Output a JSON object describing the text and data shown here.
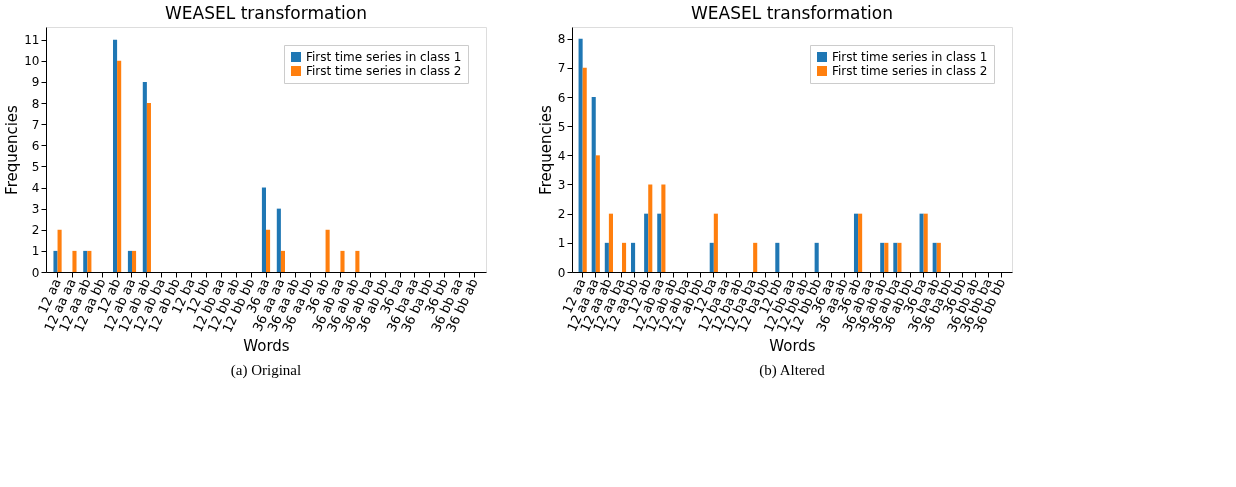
{
  "chart_data": [
    {
      "type": "bar",
      "title": "WEASEL transformation",
      "xlabel": "Words",
      "ylabel": "Frequencies",
      "legend": "top right",
      "grid": false,
      "categories": [
        "12 aa",
        "12 aa aa",
        "12 aa ab",
        "12 aa bb",
        "12 ab",
        "12 ab aa",
        "12 ab ab",
        "12 ab ba",
        "12 ab bb",
        "12 ba",
        "12 bb",
        "12 bb aa",
        "12 bb ab",
        "12 bb bb",
        "36 aa",
        "36 aa aa",
        "36 aa ab",
        "36 aa bb",
        "36 ab",
        "36 ab aa",
        "36 ab ab",
        "36 ab ba",
        "36 ab bb",
        "36 ba",
        "36 ba aa",
        "36 ba bb",
        "36 bb",
        "36 bb aa",
        "36 bb ab"
      ],
      "series": [
        {
          "name": "First time series in class 1",
          "color": "#1f77b4",
          "values": [
            1,
            0,
            1,
            0,
            11,
            1,
            9,
            0,
            0,
            0,
            0,
            0,
            0,
            0,
            4,
            3,
            0,
            0,
            0,
            0,
            0,
            0,
            0,
            0,
            0,
            0,
            0,
            0,
            0
          ]
        },
        {
          "name": "First time series in class 2",
          "color": "#ff7f0e",
          "values": [
            2,
            1,
            1,
            0,
            10,
            1,
            8,
            0,
            0,
            0,
            0,
            0,
            0,
            0,
            2,
            1,
            0,
            0,
            2,
            1,
            1,
            0,
            0,
            0,
            0,
            0,
            0,
            0,
            0
          ]
        }
      ],
      "ylim": [
        0,
        11.6
      ],
      "yticks": [
        0,
        1,
        2,
        3,
        4,
        5,
        6,
        7,
        8,
        9,
        10,
        11
      ],
      "annotations": [
        "(a) Original"
      ]
    },
    {
      "type": "bar",
      "title": "WEASEL transformation",
      "xlabel": "Words",
      "ylabel": "Frequencies",
      "legend": "top right",
      "grid": false,
      "categories": [
        "12 aa",
        "12 aa aa",
        "12 aa ab",
        "12 aa ba",
        "12 aa bb",
        "12 ab",
        "12 ab aa",
        "12 ab ab",
        "12 ab ba",
        "12 ab bb",
        "12 ba",
        "12 ba aa",
        "12 ba ab",
        "12 ba ba",
        "12 ba bb",
        "12 bb",
        "12 bb aa",
        "12 bb ab",
        "12 bb bb",
        "36 aa",
        "36 aa ab",
        "36 ab",
        "36 ab aa",
        "36 ab ab",
        "36 ab ba",
        "36 ab bb",
        "36 ba",
        "36 ba ab",
        "36 ba bb",
        "36 bb",
        "36 bb ab",
        "36 bb ba",
        "36 bb bb"
      ],
      "series": [
        {
          "name": "First time series in class 1",
          "color": "#1f77b4",
          "values": [
            8,
            6,
            1,
            0,
            1,
            2,
            2,
            0,
            0,
            0,
            1,
            0,
            0,
            0,
            0,
            1,
            0,
            0,
            1,
            0,
            0,
            2,
            0,
            1,
            1,
            0,
            2,
            1,
            0,
            0,
            0,
            0,
            0
          ]
        },
        {
          "name": "First time series in class 2",
          "color": "#ff7f0e",
          "values": [
            7,
            4,
            2,
            1,
            0,
            3,
            3,
            0,
            0,
            0,
            2,
            0,
            0,
            1,
            0,
            0,
            0,
            0,
            0,
            0,
            0,
            2,
            0,
            1,
            1,
            0,
            2,
            1,
            0,
            0,
            0,
            0,
            0
          ]
        }
      ],
      "ylim": [
        0,
        8.4
      ],
      "yticks": [
        0,
        1,
        2,
        3,
        4,
        5,
        6,
        7,
        8
      ],
      "annotations": [
        "(b) Altered"
      ]
    }
  ]
}
